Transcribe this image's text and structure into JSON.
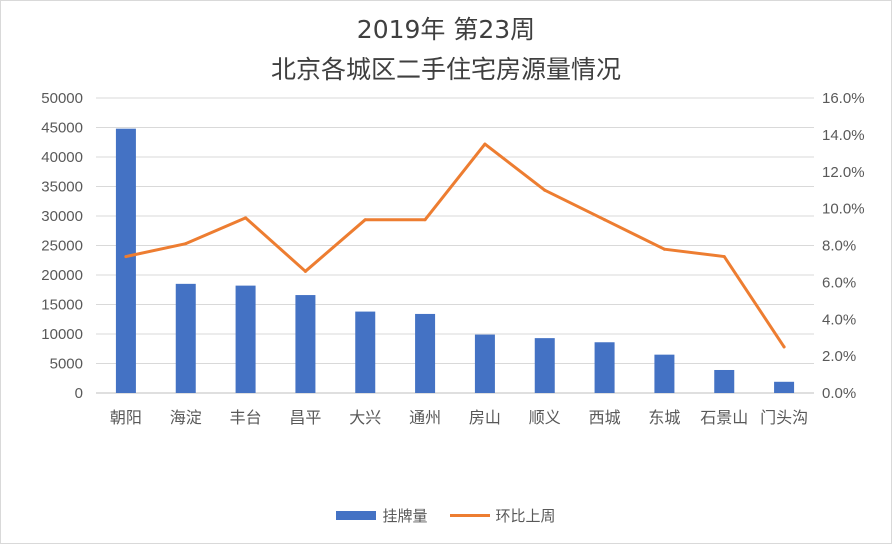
{
  "chart_data": {
    "type": "bar",
    "title": "2019年 第23周",
    "subtitle": "北京各城区二手住宅房源量情况",
    "categories": [
      "朝阳",
      "海淀",
      "丰台",
      "昌平",
      "大兴",
      "通州",
      "房山",
      "顺义",
      "西城",
      "东城",
      "石景山",
      "门头沟"
    ],
    "series": [
      {
        "name": "挂牌量",
        "type": "bar",
        "axis": "left",
        "color": "#4472c4",
        "values": [
          44800,
          18500,
          18200,
          16600,
          13800,
          13400,
          9900,
          9300,
          8600,
          6500,
          3900,
          1900
        ]
      },
      {
        "name": "环比上周",
        "type": "line",
        "axis": "right",
        "color": "#ed7d31",
        "values": [
          7.4,
          8.1,
          9.5,
          6.6,
          9.4,
          9.4,
          13.5,
          11.0,
          9.4,
          7.8,
          7.4,
          2.5
        ]
      }
    ],
    "y_left": {
      "min": 0,
      "max": 50000,
      "step": 5000,
      "ticks": [
        "0",
        "5000",
        "10000",
        "15000",
        "20000",
        "25000",
        "30000",
        "35000",
        "40000",
        "45000",
        "50000"
      ]
    },
    "y_right": {
      "min": 0,
      "max": 16,
      "step": 2,
      "ticks": [
        "0.0%",
        "2.0%",
        "4.0%",
        "6.0%",
        "8.0%",
        "10.0%",
        "12.0%",
        "14.0%",
        "16.0%"
      ]
    },
    "grid": true,
    "legend_position": "bottom"
  }
}
